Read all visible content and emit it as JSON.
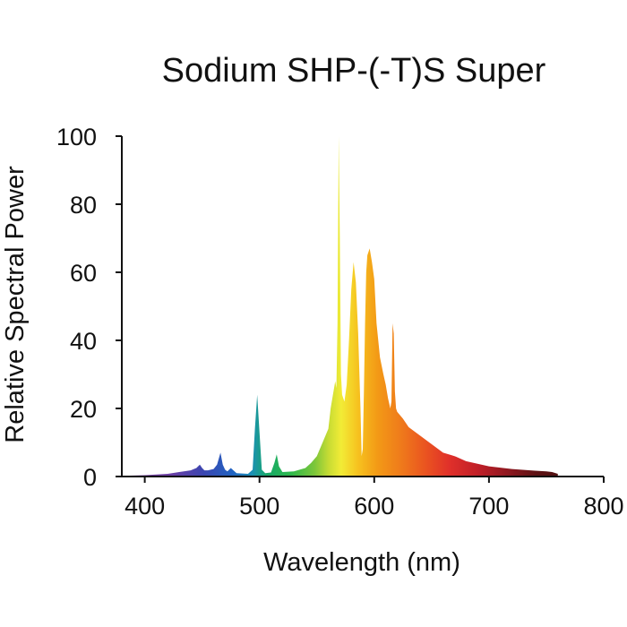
{
  "chart_data": {
    "type": "area",
    "title": "Sodium SHP-(-T)S Super",
    "xlabel": "Wavelength (nm)",
    "ylabel": "Relative Spectral Power",
    "xlim": [
      380,
      800
    ],
    "ylim": [
      0,
      100
    ],
    "xticks": [
      400,
      500,
      600,
      700,
      800
    ],
    "yticks": [
      0,
      20,
      40,
      60,
      80,
      100
    ],
    "grid": false,
    "legend": "none",
    "fill": "visible-spectrum gradient (violet to dark red)",
    "series": [
      {
        "x": [
          380,
          400,
          420,
          430,
          440,
          445,
          448,
          450,
          452,
          455,
          460,
          463,
          466,
          468,
          470,
          472,
          475,
          480,
          490,
          494,
          496,
          498,
          500,
          502,
          505,
          510,
          513,
          515,
          517,
          520,
          530,
          540,
          545,
          550,
          555,
          560,
          562,
          564,
          566,
          567,
          568,
          569,
          570,
          571,
          572,
          574,
          576,
          578,
          580,
          582,
          584,
          586,
          588,
          589,
          590,
          591,
          592,
          593,
          594,
          596,
          598,
          600,
          602,
          605,
          608,
          610,
          612,
          614,
          615,
          616,
          617,
          618,
          619,
          620,
          625,
          630,
          640,
          650,
          660,
          670,
          680,
          700,
          720,
          740,
          750,
          755,
          760
        ],
        "y": [
          0.2,
          0.4,
          0.8,
          1.3,
          1.8,
          2.5,
          3.5,
          2.5,
          1.8,
          1.8,
          2.2,
          3.5,
          7,
          3.5,
          2,
          1.5,
          2.5,
          1,
          0.8,
          2,
          14,
          24,
          13,
          2,
          1,
          1.2,
          4,
          6.5,
          3,
          1.3,
          1.5,
          2.5,
          4,
          6,
          10,
          14,
          20,
          24,
          28,
          26,
          45,
          100,
          70,
          30,
          24,
          22,
          27,
          40,
          55,
          63,
          57,
          42,
          20,
          6,
          8,
          25,
          45,
          60,
          65,
          67,
          63,
          58,
          45,
          35,
          30,
          27,
          23,
          20,
          22,
          45,
          42,
          25,
          20,
          19,
          17,
          14.5,
          12,
          9.5,
          7,
          6,
          4.5,
          3,
          2.2,
          1.7,
          1.5,
          1.3,
          0.8
        ]
      }
    ]
  }
}
